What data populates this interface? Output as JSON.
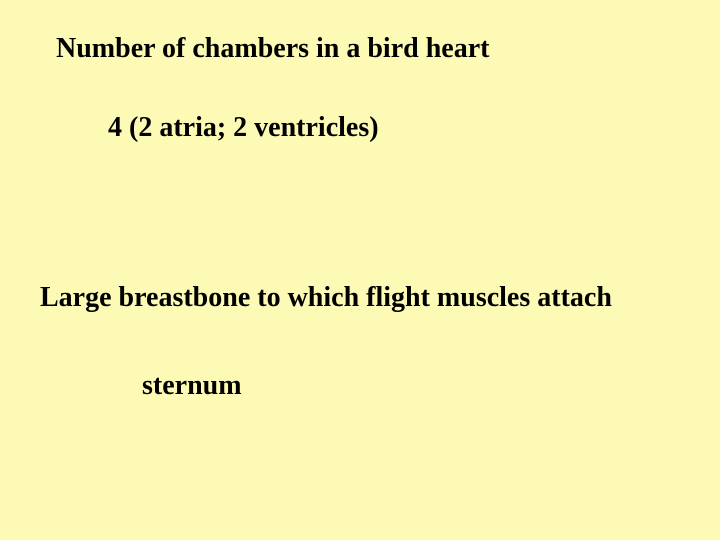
{
  "background_color": "#fcfab4",
  "text_color": "#000000",
  "font_family": "Times New Roman",
  "font_size_pt": 28,
  "font_weight": "bold",
  "items": [
    {
      "prompt": "Number of chambers in a bird heart",
      "answer": "4 (2 atria; 2 ventricles)"
    },
    {
      "prompt": "Large breastbone to which flight muscles attach",
      "answer": "sternum"
    }
  ]
}
